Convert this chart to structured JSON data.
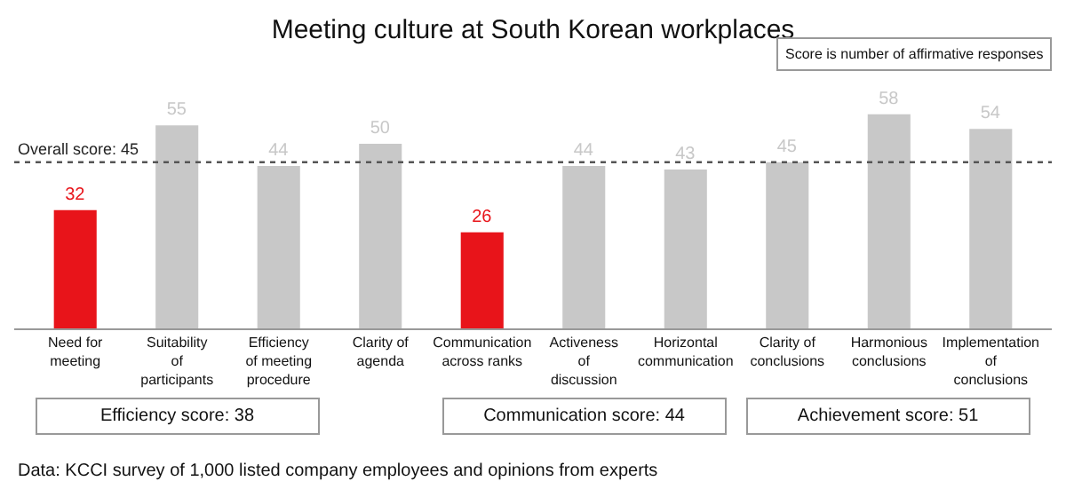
{
  "chart_data": {
    "type": "bar",
    "title": "Meeting culture at South Korean workplaces",
    "categories": [
      "Need for meeting",
      "Suitability of participants",
      "Efficiency of meeting procedure",
      "Clarity of agenda",
      "Communication across ranks",
      "Activeness of discussion",
      "Horizontal communication",
      "Clarity of conclusions",
      "Harmonious conclusions",
      "Implementation of conclusions"
    ],
    "values": [
      32,
      55,
      44,
      50,
      26,
      44,
      43,
      45,
      58,
      54
    ],
    "colors": [
      "#e8141a",
      "#c8c8c8",
      "#c8c8c8",
      "#c8c8c8",
      "#e8141a",
      "#c8c8c8",
      "#c8c8c8",
      "#c8c8c8",
      "#c8c8c8",
      "#c8c8c8"
    ],
    "ref_lines": [
      {
        "axis": "y",
        "value": 45,
        "label": "Overall score: 45",
        "line_style": "dotted",
        "color": "#555555"
      }
    ],
    "annotations": [
      "Score is number of affirmative responses",
      "Efficiency score: 38",
      "Communication score: 44",
      "Achievement score: 51",
      "Data: KCCI survey of 1,000 listed company employees and opinions from experts"
    ],
    "data_labels": true
  }
}
